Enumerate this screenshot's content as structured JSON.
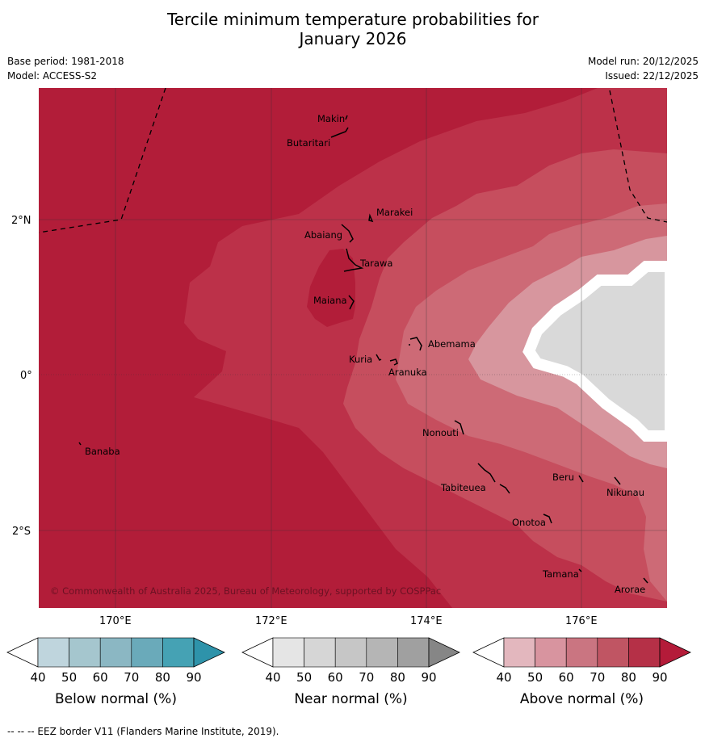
{
  "title_line1": "Tercile minimum temperature probabilities for",
  "title_line2": "January 2026",
  "base_period": "Base period: 1981-2018",
  "model": "Model: ACCESS-S2",
  "model_run": "Model run: 20/12/2025",
  "issued": "Issued: 22/12/2025",
  "copyright": "© Commonwealth of Australia 2025, Bureau of Meteorology, supported by COSPPac",
  "footer": "--  --  -- EEZ border V11 (Flanders Marine Institute, 2019).",
  "axes": {
    "lat_labels": [
      "2°N",
      "0°",
      "2°S"
    ],
    "lon_labels": [
      "170°E",
      "172°E",
      "174°E",
      "176°E"
    ]
  },
  "places": [
    {
      "name": "Makin"
    },
    {
      "name": "Butaritari"
    },
    {
      "name": "Marakei"
    },
    {
      "name": "Abaiang"
    },
    {
      "name": "Tarawa"
    },
    {
      "name": "Maiana"
    },
    {
      "name": "Abemama"
    },
    {
      "name": "Kuria"
    },
    {
      "name": "Aranuka"
    },
    {
      "name": "Banaba"
    },
    {
      "name": "Nonouti"
    },
    {
      "name": "Tabiteuea"
    },
    {
      "name": "Beru"
    },
    {
      "name": "Nikunau"
    },
    {
      "name": "Onotoa"
    },
    {
      "name": "Tamana"
    },
    {
      "name": "Arorae"
    }
  ],
  "legends": [
    {
      "label": "Below normal (%)",
      "ticks": [
        "40",
        "50",
        "60",
        "70",
        "80",
        "90"
      ],
      "colors": [
        "#ffffff",
        "#bfd5dd",
        "#a5c6ce",
        "#8bb7c3",
        "#6aaaba",
        "#45a2b4",
        "#2e93aa"
      ]
    },
    {
      "label": "Near normal (%)",
      "ticks": [
        "40",
        "50",
        "60",
        "70",
        "80",
        "90"
      ],
      "colors": [
        "#ffffff",
        "#e5e5e5",
        "#d6d6d6",
        "#c6c6c6",
        "#b5b5b5",
        "#a0a0a0",
        "#868686"
      ]
    },
    {
      "label": "Above normal (%)",
      "ticks": [
        "40",
        "50",
        "60",
        "70",
        "80",
        "90"
      ],
      "colors": [
        "#ffffff",
        "#e3b7be",
        "#d8949f",
        "#ca7581",
        "#c05563",
        "#b53047",
        "#b41b39"
      ]
    }
  ],
  "fill_colors": {
    "above_90": "#b21d39",
    "above_80": "#bc3149",
    "above_70": "#c64e5e",
    "above_60": "#cd6a76",
    "above_50": "#d7969e",
    "near_50": "#d9d9d9"
  }
}
